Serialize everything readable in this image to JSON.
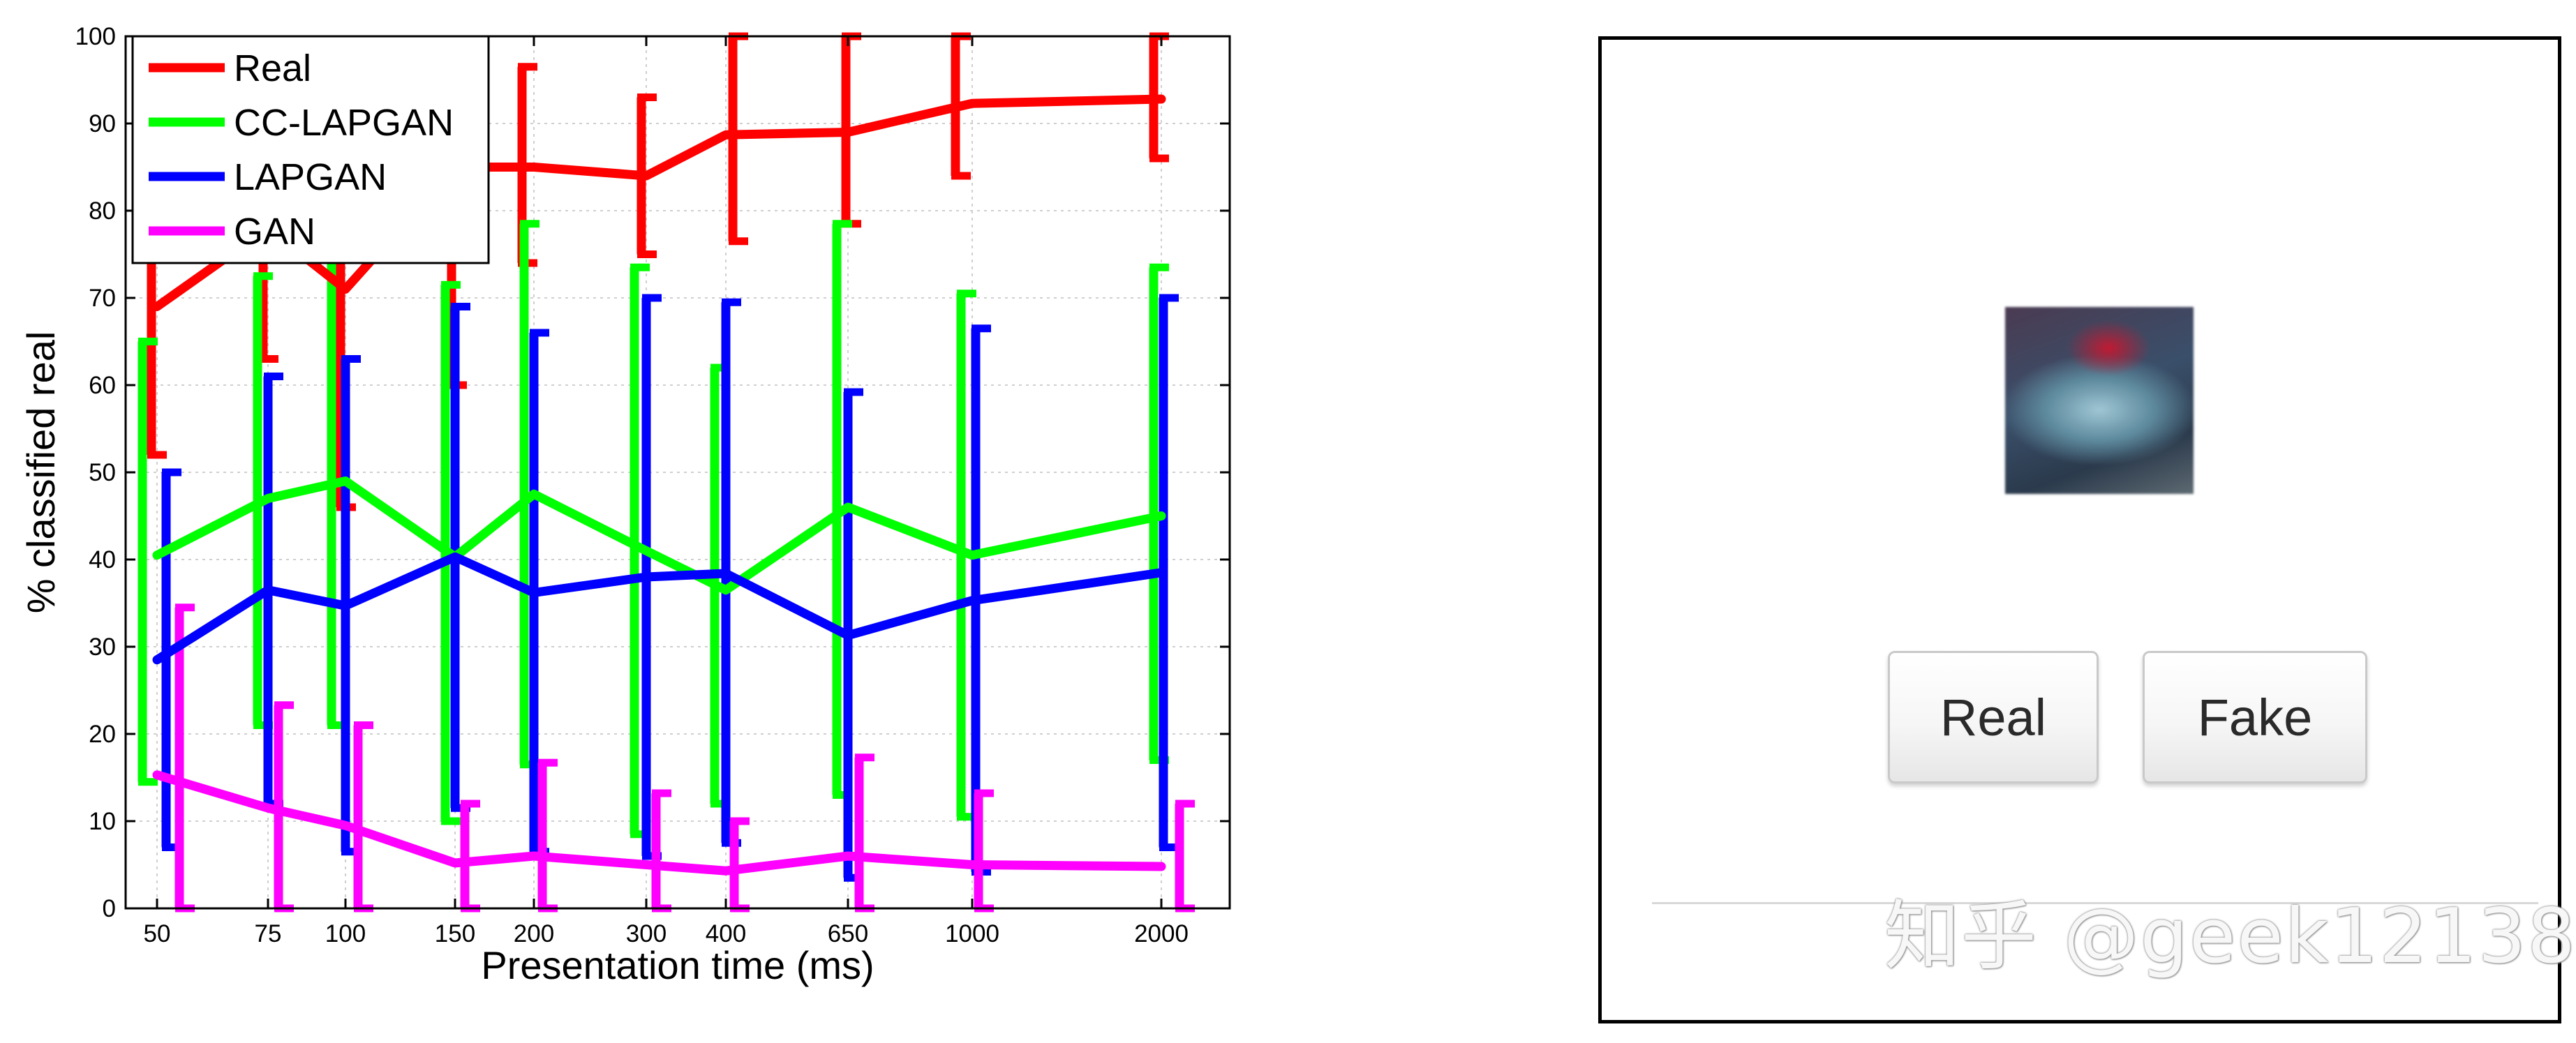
{
  "chart_data": {
    "type": "line",
    "xlabel": "Presentation time (ms)",
    "ylabel": "% classified real",
    "ylim": [
      0,
      100
    ],
    "yticks": [
      0,
      10,
      20,
      30,
      40,
      50,
      60,
      70,
      80,
      90,
      100
    ],
    "categories": [
      "50",
      "75",
      "100",
      "150",
      "200",
      "300",
      "400",
      "650",
      "1000",
      "2000"
    ],
    "grid": true,
    "legend_position": "top-left",
    "series": [
      {
        "name": "Real",
        "color": "#ff0000",
        "values": [
          69,
          78,
          71,
          85,
          85,
          84,
          88.7,
          89,
          92.3,
          92.8
        ],
        "err_low": [
          52,
          63,
          46,
          60,
          74,
          75,
          76.5,
          78.5,
          84,
          86
        ],
        "err_high": [
          87,
          90,
          93,
          95,
          96.5,
          93,
          100,
          100,
          100,
          100
        ]
      },
      {
        "name": "CC-LAPGAN",
        "color": "#00ff00",
        "values": [
          40.5,
          47,
          49,
          40.3,
          47.5,
          41,
          36.5,
          46,
          40.5,
          45
        ],
        "err_low": [
          14.5,
          21,
          21,
          10,
          16.5,
          8.5,
          12,
          13,
          10.5,
          17
        ],
        "err_high": [
          65,
          72.5,
          77,
          71.5,
          78.5,
          73.5,
          62,
          78.5,
          70.5,
          73.5
        ]
      },
      {
        "name": "LAPGAN",
        "color": "#0000ff",
        "values": [
          28.5,
          36.5,
          34.7,
          40.3,
          36.2,
          38,
          38.4,
          31.3,
          35.3,
          38.5
        ],
        "err_low": [
          7,
          12,
          6.5,
          11.5,
          6.5,
          6,
          7.5,
          3.5,
          4.2,
          7
        ],
        "err_high": [
          50,
          61,
          63,
          69,
          66,
          70,
          69.5,
          59.2,
          66.5,
          70
        ]
      },
      {
        "name": "GAN",
        "color": "#ff00ff",
        "values": [
          15.3,
          11.5,
          9.5,
          5.2,
          6,
          5,
          4.3,
          6,
          5,
          4.8
        ],
        "err_low": [
          0,
          0,
          0,
          0,
          0,
          0,
          0,
          0,
          0,
          0
        ],
        "err_high": [
          34.5,
          23.3,
          21,
          12,
          16.7,
          13.2,
          10,
          17.3,
          13.2,
          12
        ]
      }
    ]
  },
  "panel": {
    "image_icon": "blurry-car-thumbnail",
    "real_button_label": "Real",
    "fake_button_label": "Fake"
  },
  "watermark": "知乎 @geek12138"
}
